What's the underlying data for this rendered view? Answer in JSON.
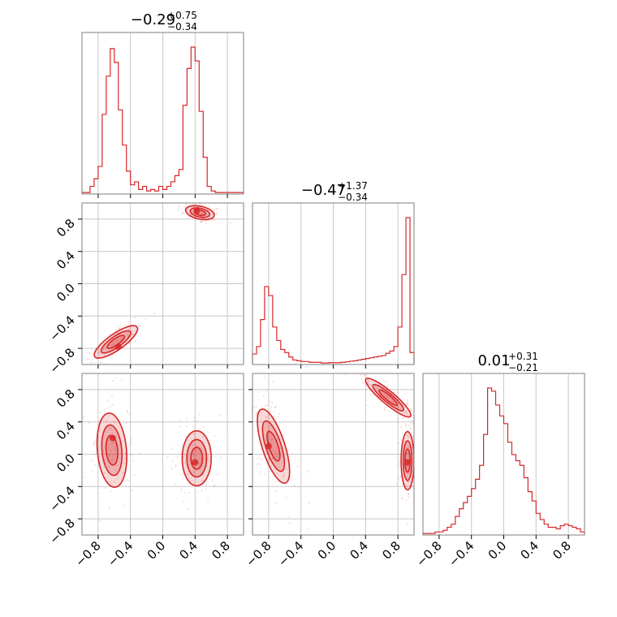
{
  "chart_data": {
    "type": "corner",
    "color": "#d62728",
    "axis_range": [
      -1.0,
      1.0
    ],
    "tick_values": [
      -0.8,
      -0.4,
      0.0,
      0.4,
      0.8
    ],
    "tick_labels": [
      "−0.8",
      "−0.4",
      "0.0",
      "0.4",
      "0.8"
    ],
    "grid": true,
    "marginals": [
      {
        "title_main": "−0.29",
        "title_plus": "+0.75",
        "title_minus": "−0.34",
        "bin_edges_start": -1.0,
        "bin_width": 0.05,
        "counts": [
          0.01,
          0.01,
          0.05,
          0.1,
          0.18,
          0.52,
          0.77,
          0.95,
          0.86,
          0.55,
          0.32,
          0.15,
          0.06,
          0.08,
          0.03,
          0.05,
          0.02,
          0.03,
          0.02,
          0.05,
          0.03,
          0.05,
          0.08,
          0.12,
          0.16,
          0.58,
          0.82,
          0.96,
          0.87,
          0.54,
          0.24,
          0.05,
          0.02,
          0.01,
          0.01,
          0.01,
          0.01,
          0.01,
          0.01,
          0.01
        ]
      },
      {
        "title_main": "−0.47",
        "title_plus": "+1.37",
        "title_minus": "−0.34",
        "bin_edges_start": -1.0,
        "bin_width": 0.05,
        "counts": [
          0.07,
          0.12,
          0.3,
          0.52,
          0.46,
          0.25,
          0.16,
          0.1,
          0.08,
          0.05,
          0.03,
          0.025,
          0.02,
          0.02,
          0.015,
          0.015,
          0.015,
          0.01,
          0.01,
          0.012,
          0.012,
          0.012,
          0.015,
          0.018,
          0.022,
          0.025,
          0.03,
          0.035,
          0.04,
          0.045,
          0.05,
          0.055,
          0.06,
          0.075,
          0.09,
          0.12,
          0.25,
          0.6,
          0.98,
          0.08
        ]
      },
      {
        "title_main": "0.01",
        "title_plus": "+0.31",
        "title_minus": "−0.21",
        "bin_edges_start": -1.0,
        "bin_width": 0.05,
        "counts": [
          0.01,
          0.01,
          0.01,
          0.02,
          0.02,
          0.03,
          0.05,
          0.07,
          0.12,
          0.17,
          0.21,
          0.25,
          0.3,
          0.36,
          0.45,
          0.65,
          0.95,
          0.93,
          0.84,
          0.77,
          0.72,
          0.6,
          0.52,
          0.48,
          0.45,
          0.37,
          0.28,
          0.22,
          0.14,
          0.1,
          0.07,
          0.05,
          0.05,
          0.04,
          0.06,
          0.07,
          0.06,
          0.05,
          0.04,
          0.02
        ]
      }
    ],
    "pair_panels": [
      {
        "x_param": 0,
        "y_param": 1,
        "modes": [
          {
            "x": 0.46,
            "y": 0.88,
            "sx": 0.09,
            "sy": 0.04,
            "rot": -12,
            "peak": [
              0.42,
              0.9
            ]
          },
          {
            "x": -0.58,
            "y": -0.72,
            "sx": 0.16,
            "sy": 0.05,
            "rot": 35,
            "peak": [
              -0.55,
              -0.78
            ]
          }
        ]
      },
      {
        "x_param": 0,
        "y_param": 2,
        "modes": [
          {
            "x": -0.63,
            "y": 0.05,
            "sx": 0.09,
            "sy": 0.23,
            "rot": 5,
            "peak": [
              -0.62,
              0.2
            ]
          },
          {
            "x": 0.42,
            "y": -0.05,
            "sx": 0.09,
            "sy": 0.17,
            "rot": 0,
            "peak": [
              0.4,
              -0.1
            ]
          }
        ]
      },
      {
        "x_param": 1,
        "y_param": 2,
        "modes": [
          {
            "x": -0.74,
            "y": 0.1,
            "sx": 0.07,
            "sy": 0.24,
            "rot": 18,
            "peak": [
              -0.8,
              0.1
            ]
          },
          {
            "x": 0.92,
            "y": -0.08,
            "sx": 0.04,
            "sy": 0.18,
            "rot": 0,
            "peak": [
              0.92,
              -0.1
            ]
          },
          {
            "x": 0.68,
            "y": 0.7,
            "sx": 0.18,
            "sy": 0.04,
            "rot": -40,
            "peak": null
          }
        ]
      }
    ]
  }
}
